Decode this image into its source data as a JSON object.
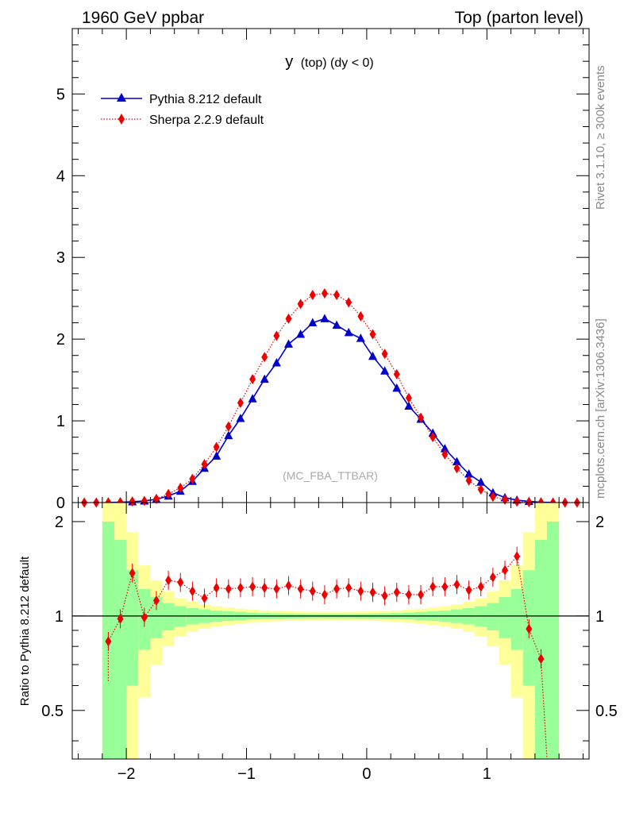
{
  "header": {
    "left": "1960 GeV ppbar",
    "right": "Top (parton level)"
  },
  "side_labels": {
    "rivet": "Rivet 3.1.10, ≥ 300k events",
    "mcplots": "mcplots.cern.ch [arXiv:1306.3436]"
  },
  "watermark": "(MC_FBA_TTBAR)",
  "plot_title": "y (top) (dy < 0)",
  "plot_title_main": "y",
  "plot_title_rest": "(top) (dy < 0)",
  "colors": {
    "pythia": "#0000cc",
    "sherpa": "#ee0000",
    "band_inner": "#99ff99",
    "band_outer": "#ffff99"
  },
  "chart_data": [
    {
      "type": "line",
      "panel": "main",
      "title": "y (top) (dy < 0)",
      "xlabel": "",
      "ylabel": "",
      "xlim": [
        -2.45,
        1.85
      ],
      "ylim": [
        0,
        5.8
      ],
      "x_ticks": [
        "−2",
        "−1",
        "0",
        "1"
      ],
      "x_tick_values": [
        -2,
        -1,
        0,
        1
      ],
      "y_ticks": [
        "0",
        "1",
        "2",
        "3",
        "4",
        "5"
      ],
      "y_tick_values": [
        0,
        1,
        2,
        3,
        4,
        5
      ],
      "legend_position": "top-left",
      "series": [
        {
          "name": "Pythia 8.212 default",
          "marker": "triangle",
          "x": [
            -2.15,
            -2.05,
            -1.95,
            -1.85,
            -1.75,
            -1.65,
            -1.55,
            -1.45,
            -1.35,
            -1.25,
            -1.15,
            -1.05,
            -0.95,
            -0.85,
            -0.75,
            -0.65,
            -0.55,
            -0.45,
            -0.35,
            -0.25,
            -0.15,
            -0.05,
            0.05,
            0.15,
            0.25,
            0.35,
            0.45,
            0.55,
            0.65,
            0.75,
            0.85,
            0.95,
            1.05,
            1.15,
            1.25,
            1.35,
            1.45,
            1.55
          ],
          "y": [
            0.002,
            0.005,
            0.01,
            0.02,
            0.04,
            0.08,
            0.14,
            0.26,
            0.42,
            0.57,
            0.82,
            1.03,
            1.27,
            1.51,
            1.71,
            1.94,
            2.06,
            2.2,
            2.25,
            2.17,
            2.08,
            2.01,
            1.79,
            1.61,
            1.4,
            1.18,
            1.02,
            0.85,
            0.66,
            0.5,
            0.35,
            0.25,
            0.12,
            0.06,
            0.03,
            0.015,
            0.005,
            0.002
          ]
        },
        {
          "name": "Sherpa 2.2.9 default",
          "marker": "diamond",
          "x": [
            -2.35,
            -2.25,
            -2.15,
            -2.05,
            -1.95,
            -1.85,
            -1.75,
            -1.65,
            -1.55,
            -1.45,
            -1.35,
            -1.25,
            -1.15,
            -1.05,
            -0.95,
            -0.85,
            -0.75,
            -0.65,
            -0.55,
            -0.45,
            -0.35,
            -0.25,
            -0.15,
            -0.05,
            0.05,
            0.15,
            0.25,
            0.35,
            0.45,
            0.55,
            0.65,
            0.75,
            0.85,
            0.95,
            1.05,
            1.15,
            1.25,
            1.35,
            1.45,
            1.55,
            1.65,
            1.75
          ],
          "y": [
            0.0,
            0.0,
            0.002,
            0.005,
            0.013,
            0.02,
            0.045,
            0.105,
            0.18,
            0.29,
            0.47,
            0.68,
            0.93,
            1.22,
            1.51,
            1.78,
            2.04,
            2.25,
            2.43,
            2.54,
            2.56,
            2.54,
            2.45,
            2.28,
            2.06,
            1.82,
            1.57,
            1.28,
            1.04,
            0.8,
            0.59,
            0.42,
            0.27,
            0.16,
            0.07,
            0.035,
            0.012,
            0.005,
            0.002,
            0.0,
            0.0,
            0.0
          ]
        }
      ]
    },
    {
      "type": "line",
      "panel": "ratio",
      "xlabel": "",
      "ylabel": "Ratio to Pythia 8.212 default",
      "xlim": [
        -2.45,
        1.85
      ],
      "ylim": [
        0.35,
        2.3
      ],
      "x_ticks": [
        "−2",
        "−1",
        "0",
        "1"
      ],
      "x_tick_values": [
        -2,
        -1,
        0,
        1
      ],
      "y_ticks": [
        "0.5",
        "1",
        "2"
      ],
      "y_tick_values": [
        0.5,
        1,
        2
      ],
      "series": [
        {
          "name": "Sherpa 2.2.9 default",
          "marker": "diamond",
          "x": [
            -2.15,
            -2.05,
            -1.95,
            -1.85,
            -1.75,
            -1.65,
            -1.55,
            -1.45,
            -1.35,
            -1.25,
            -1.15,
            -1.05,
            -0.95,
            -0.85,
            -0.75,
            -0.65,
            -0.55,
            -0.45,
            -0.35,
            -0.25,
            -0.15,
            -0.05,
            0.05,
            0.15,
            0.25,
            0.35,
            0.45,
            0.55,
            0.65,
            0.75,
            0.85,
            0.95,
            1.05,
            1.15,
            1.25,
            1.35,
            1.45
          ],
          "y": [
            0.83,
            0.98,
            1.37,
            0.99,
            1.12,
            1.3,
            1.28,
            1.2,
            1.14,
            1.23,
            1.22,
            1.23,
            1.24,
            1.23,
            1.22,
            1.25,
            1.22,
            1.2,
            1.17,
            1.22,
            1.23,
            1.2,
            1.19,
            1.16,
            1.19,
            1.17,
            1.17,
            1.24,
            1.24,
            1.26,
            1.21,
            1.24,
            1.33,
            1.4,
            1.55,
            0.91,
            0.73
          ]
        }
      ],
      "bands": {
        "x_edges": [
          -2.2,
          -2.1,
          -2.0,
          -1.9,
          -1.8,
          -1.7,
          -1.6,
          -1.5,
          -1.4,
          -1.3,
          -1.2,
          -1.1,
          -1.0,
          -0.9,
          -0.8,
          -0.7,
          -0.6,
          -0.5,
          -0.4,
          -0.3,
          -0.2,
          -0.1,
          0.0,
          0.1,
          0.2,
          0.3,
          0.4,
          0.5,
          0.6,
          0.7,
          0.8,
          0.9,
          1.0,
          1.1,
          1.2,
          1.3,
          1.4,
          1.5,
          1.6
        ],
        "inner_half_width": [
          1.0,
          0.75,
          0.4,
          0.22,
          0.15,
          0.1,
          0.075,
          0.06,
          0.05,
          0.04,
          0.035,
          0.03,
          0.025,
          0.022,
          0.02,
          0.018,
          0.017,
          0.016,
          0.016,
          0.016,
          0.016,
          0.017,
          0.018,
          0.02,
          0.022,
          0.025,
          0.03,
          0.035,
          0.04,
          0.05,
          0.06,
          0.075,
          0.1,
          0.15,
          0.22,
          0.4,
          0.75,
          1.0
        ],
        "outer_half_width": [
          2.0,
          1.6,
          0.85,
          0.45,
          0.3,
          0.2,
          0.14,
          0.11,
          0.09,
          0.075,
          0.065,
          0.055,
          0.048,
          0.042,
          0.038,
          0.035,
          0.033,
          0.032,
          0.031,
          0.031,
          0.032,
          0.033,
          0.035,
          0.038,
          0.042,
          0.048,
          0.055,
          0.065,
          0.075,
          0.09,
          0.11,
          0.14,
          0.2,
          0.3,
          0.45,
          0.85,
          1.6,
          2.0
        ]
      }
    }
  ]
}
